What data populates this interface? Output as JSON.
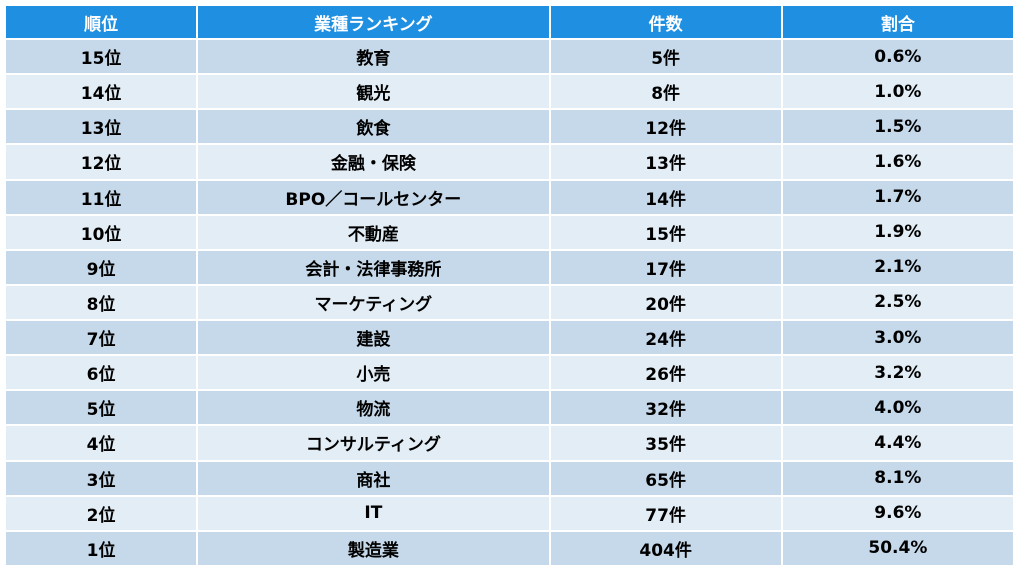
{
  "table": {
    "headers": {
      "rank": "順位",
      "industry": "業種ランキング",
      "count": "件数",
      "ratio": "割合"
    },
    "rows": [
      {
        "rank": "15位",
        "industry": "教育",
        "count": "5件",
        "ratio": "0.6%"
      },
      {
        "rank": "14位",
        "industry": "観光",
        "count": "8件",
        "ratio": "1.0%"
      },
      {
        "rank": "13位",
        "industry": "飲食",
        "count": "12件",
        "ratio": "1.5%"
      },
      {
        "rank": "12位",
        "industry": "金融・保険",
        "count": "13件",
        "ratio": "1.6%"
      },
      {
        "rank": "11位",
        "industry": "BPO／コールセンター",
        "count": "14件",
        "ratio": "1.7%"
      },
      {
        "rank": "10位",
        "industry": "不動産",
        "count": "15件",
        "ratio": "1.9%"
      },
      {
        "rank": "9位",
        "industry": "会計・法律事務所",
        "count": "17件",
        "ratio": "2.1%"
      },
      {
        "rank": "8位",
        "industry": "マーケティング",
        "count": "20件",
        "ratio": "2.5%"
      },
      {
        "rank": "7位",
        "industry": "建設",
        "count": "24件",
        "ratio": "3.0%"
      },
      {
        "rank": "6位",
        "industry": "小売",
        "count": "26件",
        "ratio": "3.2%"
      },
      {
        "rank": "5位",
        "industry": "物流",
        "count": "32件",
        "ratio": "4.0%"
      },
      {
        "rank": "4位",
        "industry": "コンサルティング",
        "count": "35件",
        "ratio": "4.4%"
      },
      {
        "rank": "3位",
        "industry": "商社",
        "count": "65件",
        "ratio": "8.1%"
      },
      {
        "rank": "2位",
        "industry": "IT",
        "count": "77件",
        "ratio": "9.6%"
      },
      {
        "rank": "1位",
        "industry": "製造業",
        "count": "404件",
        "ratio": "50.4%"
      }
    ]
  },
  "colors": {
    "header_bg": "#1e8fe1",
    "header_text": "#ffffff",
    "row_odd_bg": "#c6d9ea",
    "row_even_bg": "#e2edf5"
  }
}
